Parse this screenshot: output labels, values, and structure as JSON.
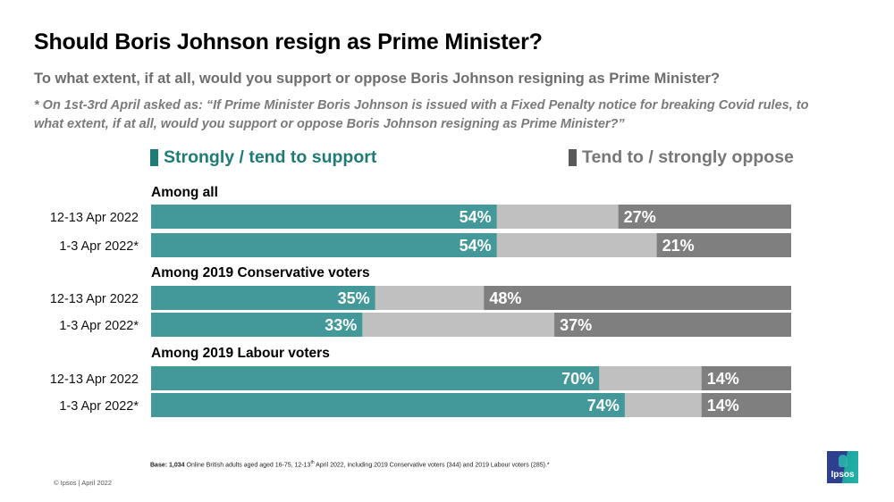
{
  "header": {
    "title": "Should Boris Johnson resign as Prime Minister?",
    "subtitle": "To what extent, if at all, would you support or oppose Boris Johnson resigning as Prime Minister?",
    "note": "* On 1st-3rd April asked as: “If Prime Minister Boris Johnson is issued with a Fixed Penalty notice for breaking Covid rules, to what extent, if at all, would you support or oppose Boris Johnson resigning as Prime Minister?”"
  },
  "colors": {
    "support": "#43999a",
    "neither": "#c0c0c0",
    "oppose": "#7f7f7f",
    "support_legend_text": "#1f7b76",
    "oppose_legend_text": "#767676"
  },
  "chart_data": {
    "type": "bar",
    "orientation": "horizontal-stacked-100",
    "title": "Should Boris Johnson resign as Prime Minister?",
    "legend": [
      {
        "name": "Strongly / tend to support",
        "placement": "top-left"
      },
      {
        "name": "Tend to / strongly oppose",
        "placement": "top-right"
      }
    ],
    "xlim": [
      0,
      100
    ],
    "groups": [
      {
        "label": "Among all",
        "rows": [
          {
            "label": "12-13 Apr 2022",
            "support": 54,
            "oppose": 27,
            "support_label": "54%",
            "oppose_label": "27%"
          },
          {
            "label": "1-3 Apr 2022*",
            "support": 54,
            "oppose": 21,
            "support_label": "54%",
            "oppose_label": "21%"
          }
        ]
      },
      {
        "label": "Among 2019 Conservative voters",
        "rows": [
          {
            "label": "12-13 Apr 2022",
            "support": 35,
            "oppose": 48,
            "support_label": "35%",
            "oppose_label": "48%"
          },
          {
            "label": "1-3 Apr 2022*",
            "support": 33,
            "oppose": 37,
            "support_label": "33%",
            "oppose_label": "37%"
          }
        ]
      },
      {
        "label": "Among 2019 Labour voters",
        "rows": [
          {
            "label": "12-13 Apr 2022",
            "support": 70,
            "oppose": 14,
            "support_label": "70%",
            "oppose_label": "14%"
          },
          {
            "label": "1-3 Apr 2022*",
            "support": 74,
            "oppose": 14,
            "support_label": "74%",
            "oppose_label": "14%"
          }
        ]
      }
    ]
  },
  "footer": {
    "base_label": "Base:",
    "base_count": "1,034",
    "base_text_1": " Online British adults aged aged 16-75, 12-13",
    "base_sup": "th",
    "base_text_2": " April 2022, including 2019 Conservative voters (344) and 2019 Labour voters (285).*",
    "copyright": "© Ipsos | April 2022",
    "logo_text": "Ipsos"
  }
}
